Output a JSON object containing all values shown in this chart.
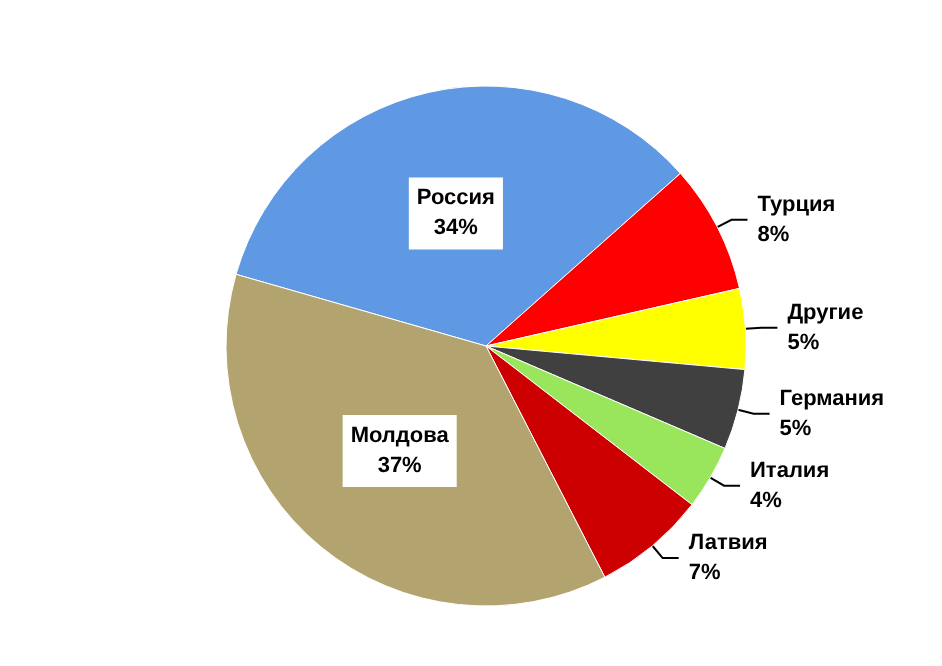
{
  "chart_data": {
    "type": "pie",
    "categories": [
      "Россия",
      "Турция",
      "Другие",
      "Германия",
      "Италия",
      "Латвия",
      "Молдова"
    ],
    "values": [
      34,
      8,
      5,
      5,
      4,
      7,
      37
    ],
    "colors": [
      "#5f98e3",
      "#ff0000",
      "#ffff00",
      "#404040",
      "#99e65c",
      "#cc0000",
      "#b3a46f"
    ],
    "value_labels": [
      "34%",
      "8%",
      "5%",
      "5%",
      "4%",
      "7%",
      "37%"
    ],
    "legend": false
  }
}
